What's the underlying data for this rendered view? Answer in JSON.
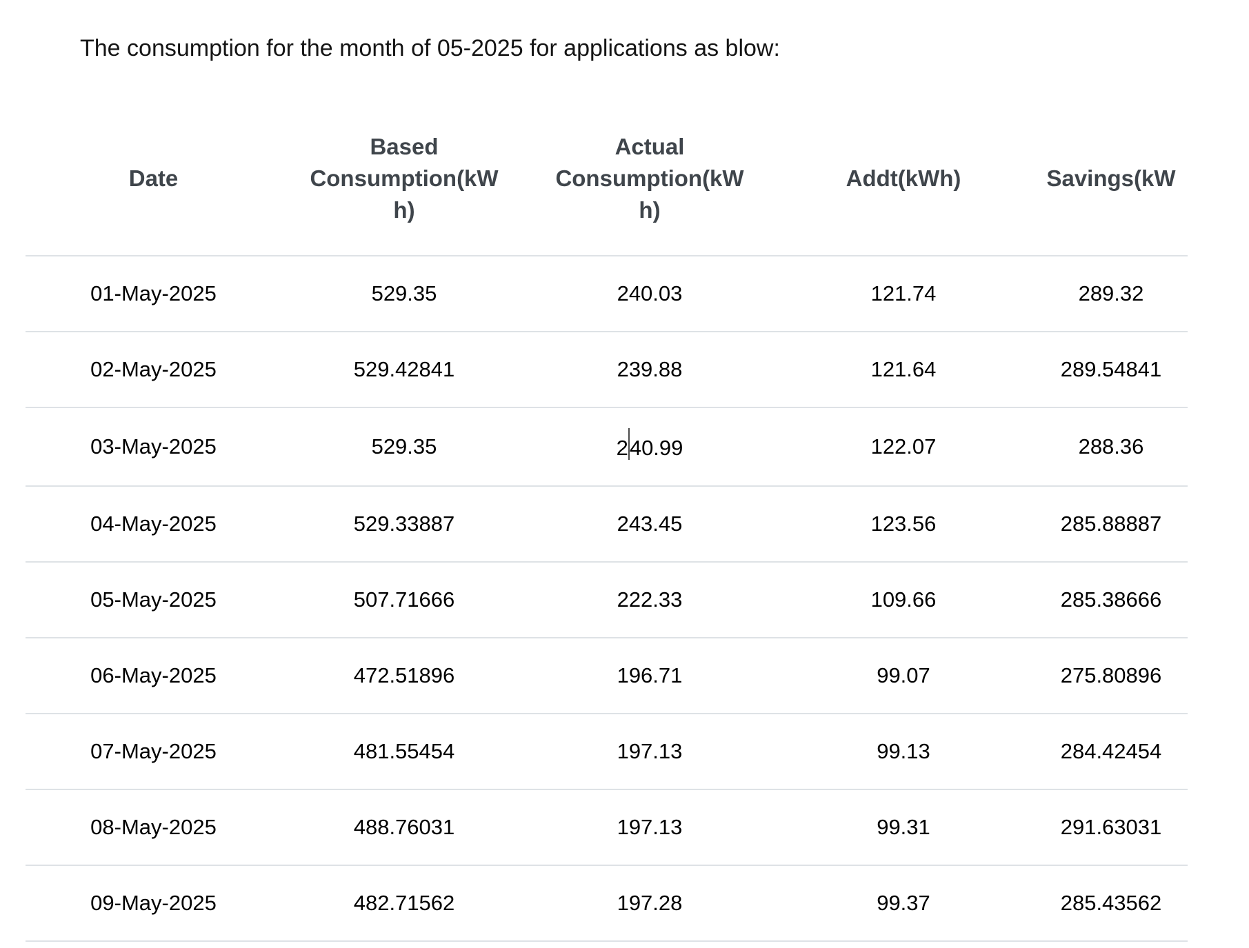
{
  "page": {
    "title": "The consumption for the month of 05-2025 for applications as blow:"
  },
  "colors": {
    "row_border": "#dee2e6",
    "header_text": "#3f454b",
    "cell_text": "#000000",
    "background": "#ffffff"
  },
  "table": {
    "columns": [
      {
        "id": "date",
        "label_lines": [
          "Date"
        ]
      },
      {
        "id": "based",
        "label_lines": [
          "Based",
          "Consumption(kW",
          "h)"
        ]
      },
      {
        "id": "actual",
        "label_lines": [
          "Actual",
          "Consumption(kW",
          "h)"
        ]
      },
      {
        "id": "addt",
        "label_lines": [
          "Addt(kWh)"
        ]
      },
      {
        "id": "savings",
        "label_lines": [
          "Savings(kW"
        ]
      }
    ],
    "rows": [
      [
        "01-May-2025",
        "529.35",
        "240.03",
        "121.74",
        "289.32"
      ],
      [
        "02-May-2025",
        "529.42841",
        "239.88",
        "121.64",
        "289.54841"
      ],
      [
        "03-May-2025",
        "529.35",
        "240.99",
        "122.07",
        "288.36"
      ],
      [
        "04-May-2025",
        "529.33887",
        "243.45",
        "123.56",
        "285.88887"
      ],
      [
        "05-May-2025",
        "507.71666",
        "222.33",
        "109.66",
        "285.38666"
      ],
      [
        "06-May-2025",
        "472.51896",
        "196.71",
        "99.07",
        "275.80896"
      ],
      [
        "07-May-2025",
        "481.55454",
        "197.13",
        "99.13",
        "284.42454"
      ],
      [
        "08-May-2025",
        "488.76031",
        "197.13",
        "99.31",
        "291.63031"
      ],
      [
        "09-May-2025",
        "482.71562",
        "197.28",
        "99.37",
        "285.43562"
      ]
    ],
    "caret": {
      "row_index": 2,
      "col_index": 2,
      "after_chars": 1
    }
  }
}
